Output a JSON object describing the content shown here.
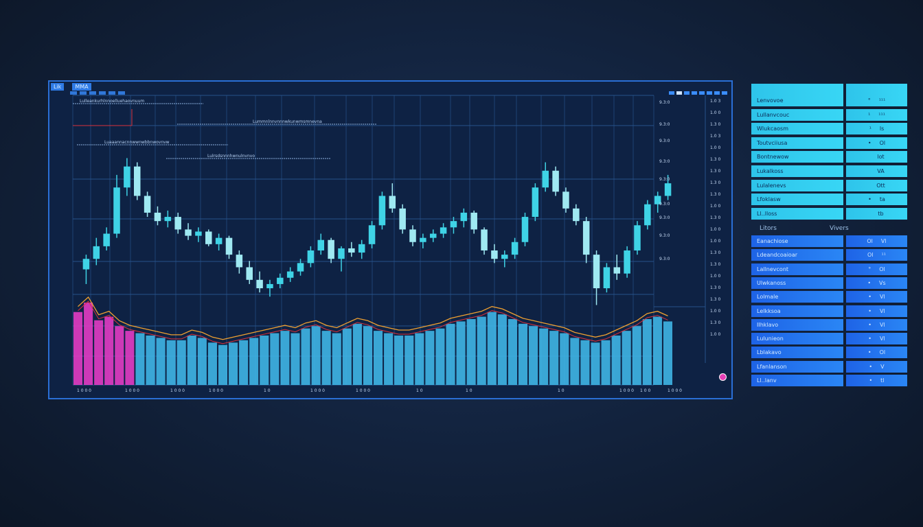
{
  "panel": {
    "tab_a": "Lik",
    "tab_b": "MMA"
  },
  "side": {
    "header_left": "Litors",
    "header_right": "Vivers",
    "rows_top": [
      {
        "label": "Lenvovoe",
        "v1": "°",
        "v2": "¹¹¹"
      },
      {
        "label": "Lullanvcouc",
        "v1": "¹",
        "v2": "¹¹¹"
      },
      {
        "label": "Wlukcaosm",
        "v1": "¹",
        "v2": "ls"
      },
      {
        "label": "Toutvciiusa",
        "v1": "•",
        "v2": "Ol"
      },
      {
        "label": "Bontnewow",
        "v1": "",
        "v2": "lot"
      },
      {
        "label": "Lukalkoss",
        "v1": "",
        "v2": "VA"
      },
      {
        "label": "Lulalenevs",
        "v1": "",
        "v2": "Ott"
      },
      {
        "label": "Lfoklasw",
        "v1": "•",
        "v2": "ta"
      },
      {
        "label": "Ll..lloss",
        "v1": "",
        "v2": "tb"
      }
    ],
    "rows_bottom": [
      {
        "label": "Eanachiose",
        "v1": "Ol",
        "v2": "Vl"
      },
      {
        "label": "Ldeandcoaioar",
        "v1": "Ol",
        "v2": "¹¹"
      },
      {
        "label": "Lallnevcont",
        "v1": "°",
        "v2": "Ol"
      },
      {
        "label": "Ulwkanoss",
        "v1": "•",
        "v2": "Vs"
      },
      {
        "label": "Lolmale",
        "v1": "•",
        "v2": "Vl"
      },
      {
        "label": "Lelkksoa",
        "v1": "•",
        "v2": "Vl"
      },
      {
        "label": "IIhklavo",
        "v1": "•",
        "v2": "Vl"
      },
      {
        "label": "Lulunieon",
        "v1": "•",
        "v2": "Vl"
      },
      {
        "label": "Lblakavo",
        "v1": "•",
        "v2": "Ol"
      },
      {
        "label": "Lfanlanson",
        "v1": "•",
        "v2": "V"
      },
      {
        "label": "Ll..lanv",
        "v1": "•",
        "v2": "tl"
      }
    ]
  },
  "price_labels": [
    "9.3:0",
    "9.3:0",
    "9.3:0",
    "9.3:0",
    "9.3:0",
    "9.3:0",
    "9.3:0",
    "9.3:0",
    "9.3:0"
  ],
  "far_labels": [
    "1.0 3",
    "1.0 0",
    "1.3 0",
    "1.0 3",
    "1.0 0",
    "1.3 0",
    "1.3 0",
    "1.3 0",
    "1.3 0",
    "1.0 0",
    "1.3 0",
    "1.0 0",
    "1.0 0",
    "1.3 0",
    "1.3 0",
    "1.0 0",
    "1.3 0",
    "1.3 0",
    "1.0 0",
    "1.3 0",
    "1.0 0"
  ],
  "x_labels": [
    "1 0 0 0",
    "1 0 0 0",
    "1 0 0 0",
    "1 0 0 0",
    "1 0",
    "1 0 0 0",
    "1 0 0 0",
    "1 0",
    "1 0",
    "1 0",
    "1 0 0 0",
    "1 0 0",
    "1 0 0 0"
  ],
  "ribbon_labels": [
    "Lulleankurhlnnoelluehaovnuum",
    "Lummnlnnvnnnwkunwmsmnevna",
    "Luaaannacnnwwnwbbnwovnvw",
    "Lulrsdsnnnhwnulnvnvo"
  ],
  "colors": {
    "bg": "#0f1d33",
    "panel": "#0e2244",
    "grid": "#27518a",
    "candle_up": "#3fd3e6",
    "candle_down": "#9fe9f2",
    "volume": "#3fb5e6",
    "volume_pink": "#e23cc4",
    "ma_orange": "#f0a030",
    "ma_red": "#d9323c",
    "accent": "#2a6fd6"
  },
  "chart_data": {
    "type": "candlestick",
    "candles": [
      {
        "o": 35,
        "h": 42,
        "l": 28,
        "c": 40
      },
      {
        "o": 40,
        "h": 50,
        "l": 37,
        "c": 46
      },
      {
        "o": 46,
        "h": 55,
        "l": 44,
        "c": 52
      },
      {
        "o": 52,
        "h": 80,
        "l": 50,
        "c": 74
      },
      {
        "o": 74,
        "h": 88,
        "l": 70,
        "c": 84
      },
      {
        "o": 84,
        "h": 86,
        "l": 68,
        "c": 70
      },
      {
        "o": 70,
        "h": 72,
        "l": 60,
        "c": 62
      },
      {
        "o": 62,
        "h": 65,
        "l": 56,
        "c": 58
      },
      {
        "o": 58,
        "h": 63,
        "l": 55,
        "c": 60
      },
      {
        "o": 60,
        "h": 62,
        "l": 52,
        "c": 54
      },
      {
        "o": 54,
        "h": 57,
        "l": 49,
        "c": 51
      },
      {
        "o": 51,
        "h": 55,
        "l": 48,
        "c": 53
      },
      {
        "o": 53,
        "h": 54,
        "l": 46,
        "c": 47
      },
      {
        "o": 47,
        "h": 52,
        "l": 44,
        "c": 50
      },
      {
        "o": 50,
        "h": 51,
        "l": 40,
        "c": 42
      },
      {
        "o": 42,
        "h": 44,
        "l": 33,
        "c": 36
      },
      {
        "o": 36,
        "h": 39,
        "l": 28,
        "c": 30
      },
      {
        "o": 30,
        "h": 34,
        "l": 24,
        "c": 26
      },
      {
        "o": 26,
        "h": 30,
        "l": 22,
        "c": 28
      },
      {
        "o": 28,
        "h": 33,
        "l": 26,
        "c": 31
      },
      {
        "o": 31,
        "h": 36,
        "l": 29,
        "c": 34
      },
      {
        "o": 34,
        "h": 40,
        "l": 32,
        "c": 38
      },
      {
        "o": 38,
        "h": 46,
        "l": 36,
        "c": 44
      },
      {
        "o": 44,
        "h": 52,
        "l": 42,
        "c": 49
      },
      {
        "o": 49,
        "h": 50,
        "l": 38,
        "c": 40
      },
      {
        "o": 40,
        "h": 46,
        "l": 34,
        "c": 45
      },
      {
        "o": 45,
        "h": 48,
        "l": 41,
        "c": 43
      },
      {
        "o": 43,
        "h": 49,
        "l": 40,
        "c": 47
      },
      {
        "o": 47,
        "h": 58,
        "l": 45,
        "c": 56
      },
      {
        "o": 56,
        "h": 72,
        "l": 54,
        "c": 70
      },
      {
        "o": 70,
        "h": 76,
        "l": 62,
        "c": 64
      },
      {
        "o": 64,
        "h": 66,
        "l": 52,
        "c": 54
      },
      {
        "o": 54,
        "h": 56,
        "l": 46,
        "c": 48
      },
      {
        "o": 48,
        "h": 52,
        "l": 45,
        "c": 50
      },
      {
        "o": 50,
        "h": 54,
        "l": 48,
        "c": 52
      },
      {
        "o": 52,
        "h": 57,
        "l": 50,
        "c": 55
      },
      {
        "o": 55,
        "h": 60,
        "l": 52,
        "c": 58
      },
      {
        "o": 58,
        "h": 64,
        "l": 55,
        "c": 62
      },
      {
        "o": 62,
        "h": 63,
        "l": 52,
        "c": 54
      },
      {
        "o": 54,
        "h": 55,
        "l": 42,
        "c": 44
      },
      {
        "o": 44,
        "h": 47,
        "l": 38,
        "c": 40
      },
      {
        "o": 40,
        "h": 44,
        "l": 36,
        "c": 42
      },
      {
        "o": 42,
        "h": 50,
        "l": 40,
        "c": 48
      },
      {
        "o": 48,
        "h": 62,
        "l": 46,
        "c": 60
      },
      {
        "o": 60,
        "h": 76,
        "l": 58,
        "c": 74
      },
      {
        "o": 74,
        "h": 86,
        "l": 72,
        "c": 82
      },
      {
        "o": 82,
        "h": 84,
        "l": 70,
        "c": 72
      },
      {
        "o": 72,
        "h": 74,
        "l": 62,
        "c": 64
      },
      {
        "o": 64,
        "h": 66,
        "l": 56,
        "c": 58
      },
      {
        "o": 58,
        "h": 60,
        "l": 38,
        "c": 42
      },
      {
        "o": 42,
        "h": 44,
        "l": 18,
        "c": 26
      },
      {
        "o": 26,
        "h": 38,
        "l": 24,
        "c": 36
      },
      {
        "o": 36,
        "h": 42,
        "l": 30,
        "c": 33
      },
      {
        "o": 33,
        "h": 46,
        "l": 31,
        "c": 44
      },
      {
        "o": 44,
        "h": 58,
        "l": 42,
        "c": 56
      },
      {
        "o": 56,
        "h": 68,
        "l": 54,
        "c": 66
      },
      {
        "o": 66,
        "h": 72,
        "l": 62,
        "c": 70
      },
      {
        "o": 70,
        "h": 80,
        "l": 68,
        "c": 76
      }
    ],
    "volume": [
      62,
      70,
      55,
      58,
      50,
      46,
      44,
      42,
      40,
      38,
      38,
      42,
      40,
      36,
      34,
      36,
      38,
      40,
      42,
      44,
      46,
      44,
      48,
      50,
      46,
      44,
      48,
      52,
      50,
      46,
      44,
      42,
      42,
      44,
      46,
      48,
      52,
      54,
      56,
      58,
      62,
      60,
      56,
      52,
      50,
      48,
      46,
      44,
      40,
      38,
      36,
      38,
      42,
      46,
      50,
      56,
      58,
      54
    ],
    "ylim": [
      10,
      95
    ],
    "grid": true
  }
}
